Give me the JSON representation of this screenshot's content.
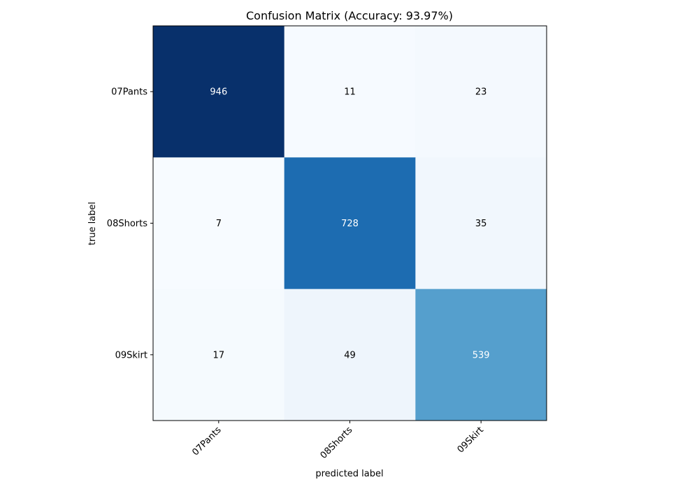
{
  "chart_data": {
    "type": "heatmap",
    "title": "Confusion Matrix (Accuracy: 93.97%)",
    "xlabel": "predicted label",
    "ylabel": "true label",
    "x_categories": [
      "07Pants",
      "08Shorts",
      "09Skirt"
    ],
    "y_categories": [
      "07Pants",
      "08Shorts",
      "09Skirt"
    ],
    "values": [
      [
        946,
        11,
        23
      ],
      [
        7,
        728,
        35
      ],
      [
        17,
        49,
        539
      ]
    ],
    "colormap": "Blues",
    "grid": false
  }
}
